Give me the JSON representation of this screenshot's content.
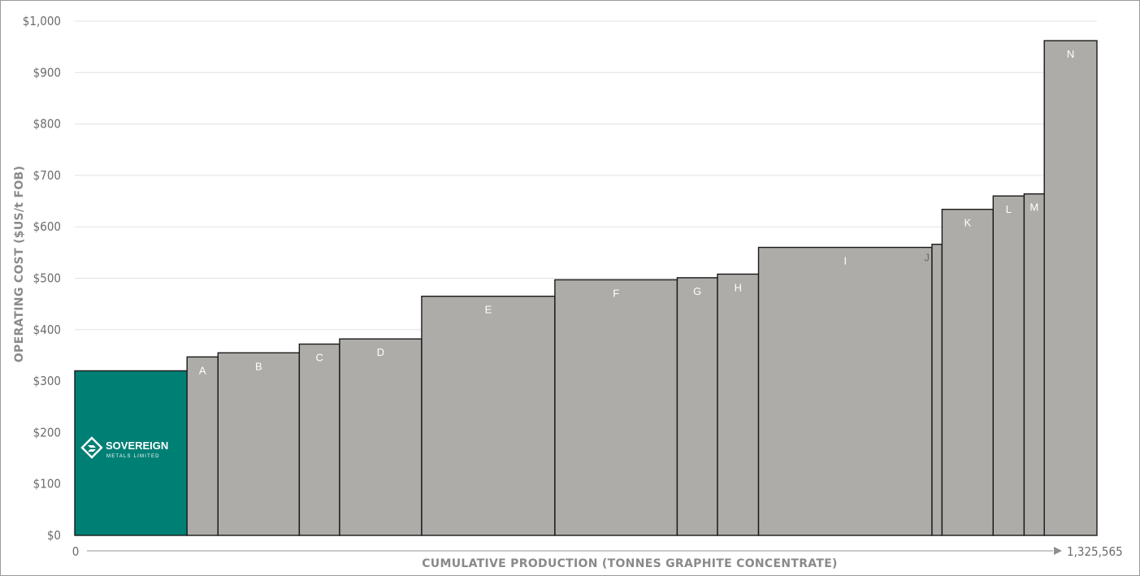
{
  "chart_data": {
    "type": "bar",
    "variant": "cost-curve",
    "ylabel": "OPERATING COST ($US/t FOB)",
    "xlabel": "CUMULATIVE PRODUCTION (TONNES GRAPHITE CONCENTRATE)",
    "ylim": [
      0,
      1000
    ],
    "y_ticks": [
      "$0",
      "$100",
      "$200",
      "$300",
      "$400",
      "$500",
      "$600",
      "$700",
      "$800",
      "$900",
      "$1,000"
    ],
    "x_start_label": "0",
    "x_end_label": "1,325,565",
    "x_total": 1325565,
    "grid": true,
    "bars": [
      {
        "label": "",
        "logo": true,
        "value": 320,
        "width": 145000,
        "color": "#007f75"
      },
      {
        "label": "A",
        "value": 347,
        "width": 40000,
        "color": "#aeaca9"
      },
      {
        "label": "B",
        "value": 355,
        "width": 105000,
        "color": "#aeaca9"
      },
      {
        "label": "C",
        "value": 372,
        "width": 52000,
        "color": "#aeaca9"
      },
      {
        "label": "D",
        "value": 382,
        "width": 106000,
        "color": "#aeaca9"
      },
      {
        "label": "E",
        "value": 465,
        "width": 172000,
        "color": "#aeaca9"
      },
      {
        "label": "F",
        "value": 497,
        "width": 158000,
        "color": "#aeaca9"
      },
      {
        "label": "G",
        "value": 501,
        "width": 52000,
        "color": "#aeaca9"
      },
      {
        "label": "H",
        "value": 508,
        "width": 53000,
        "color": "#aeaca9"
      },
      {
        "label": "I",
        "value": 560,
        "width": 224000,
        "color": "#aeaca9"
      },
      {
        "label": "J",
        "value": 566,
        "width": 13000,
        "color": "#aeaca9"
      },
      {
        "label": "K",
        "value": 634,
        "width": 66000,
        "color": "#aeaca9"
      },
      {
        "label": "L",
        "value": 660,
        "width": 40000,
        "color": "#aeaca9"
      },
      {
        "label": "M",
        "value": 664,
        "width": 26000,
        "color": "#aeaca9"
      },
      {
        "label": "N",
        "value": 962,
        "width": 68000,
        "color": "#aeaca9"
      }
    ]
  },
  "logo": {
    "name": "SOVEREIGN",
    "tagline": "METALS LIMITED"
  },
  "colors": {
    "bar": "#aeaca9",
    "highlight": "#007f75",
    "gridline": "#e3e3e3",
    "axis": "#a9a9a9"
  }
}
